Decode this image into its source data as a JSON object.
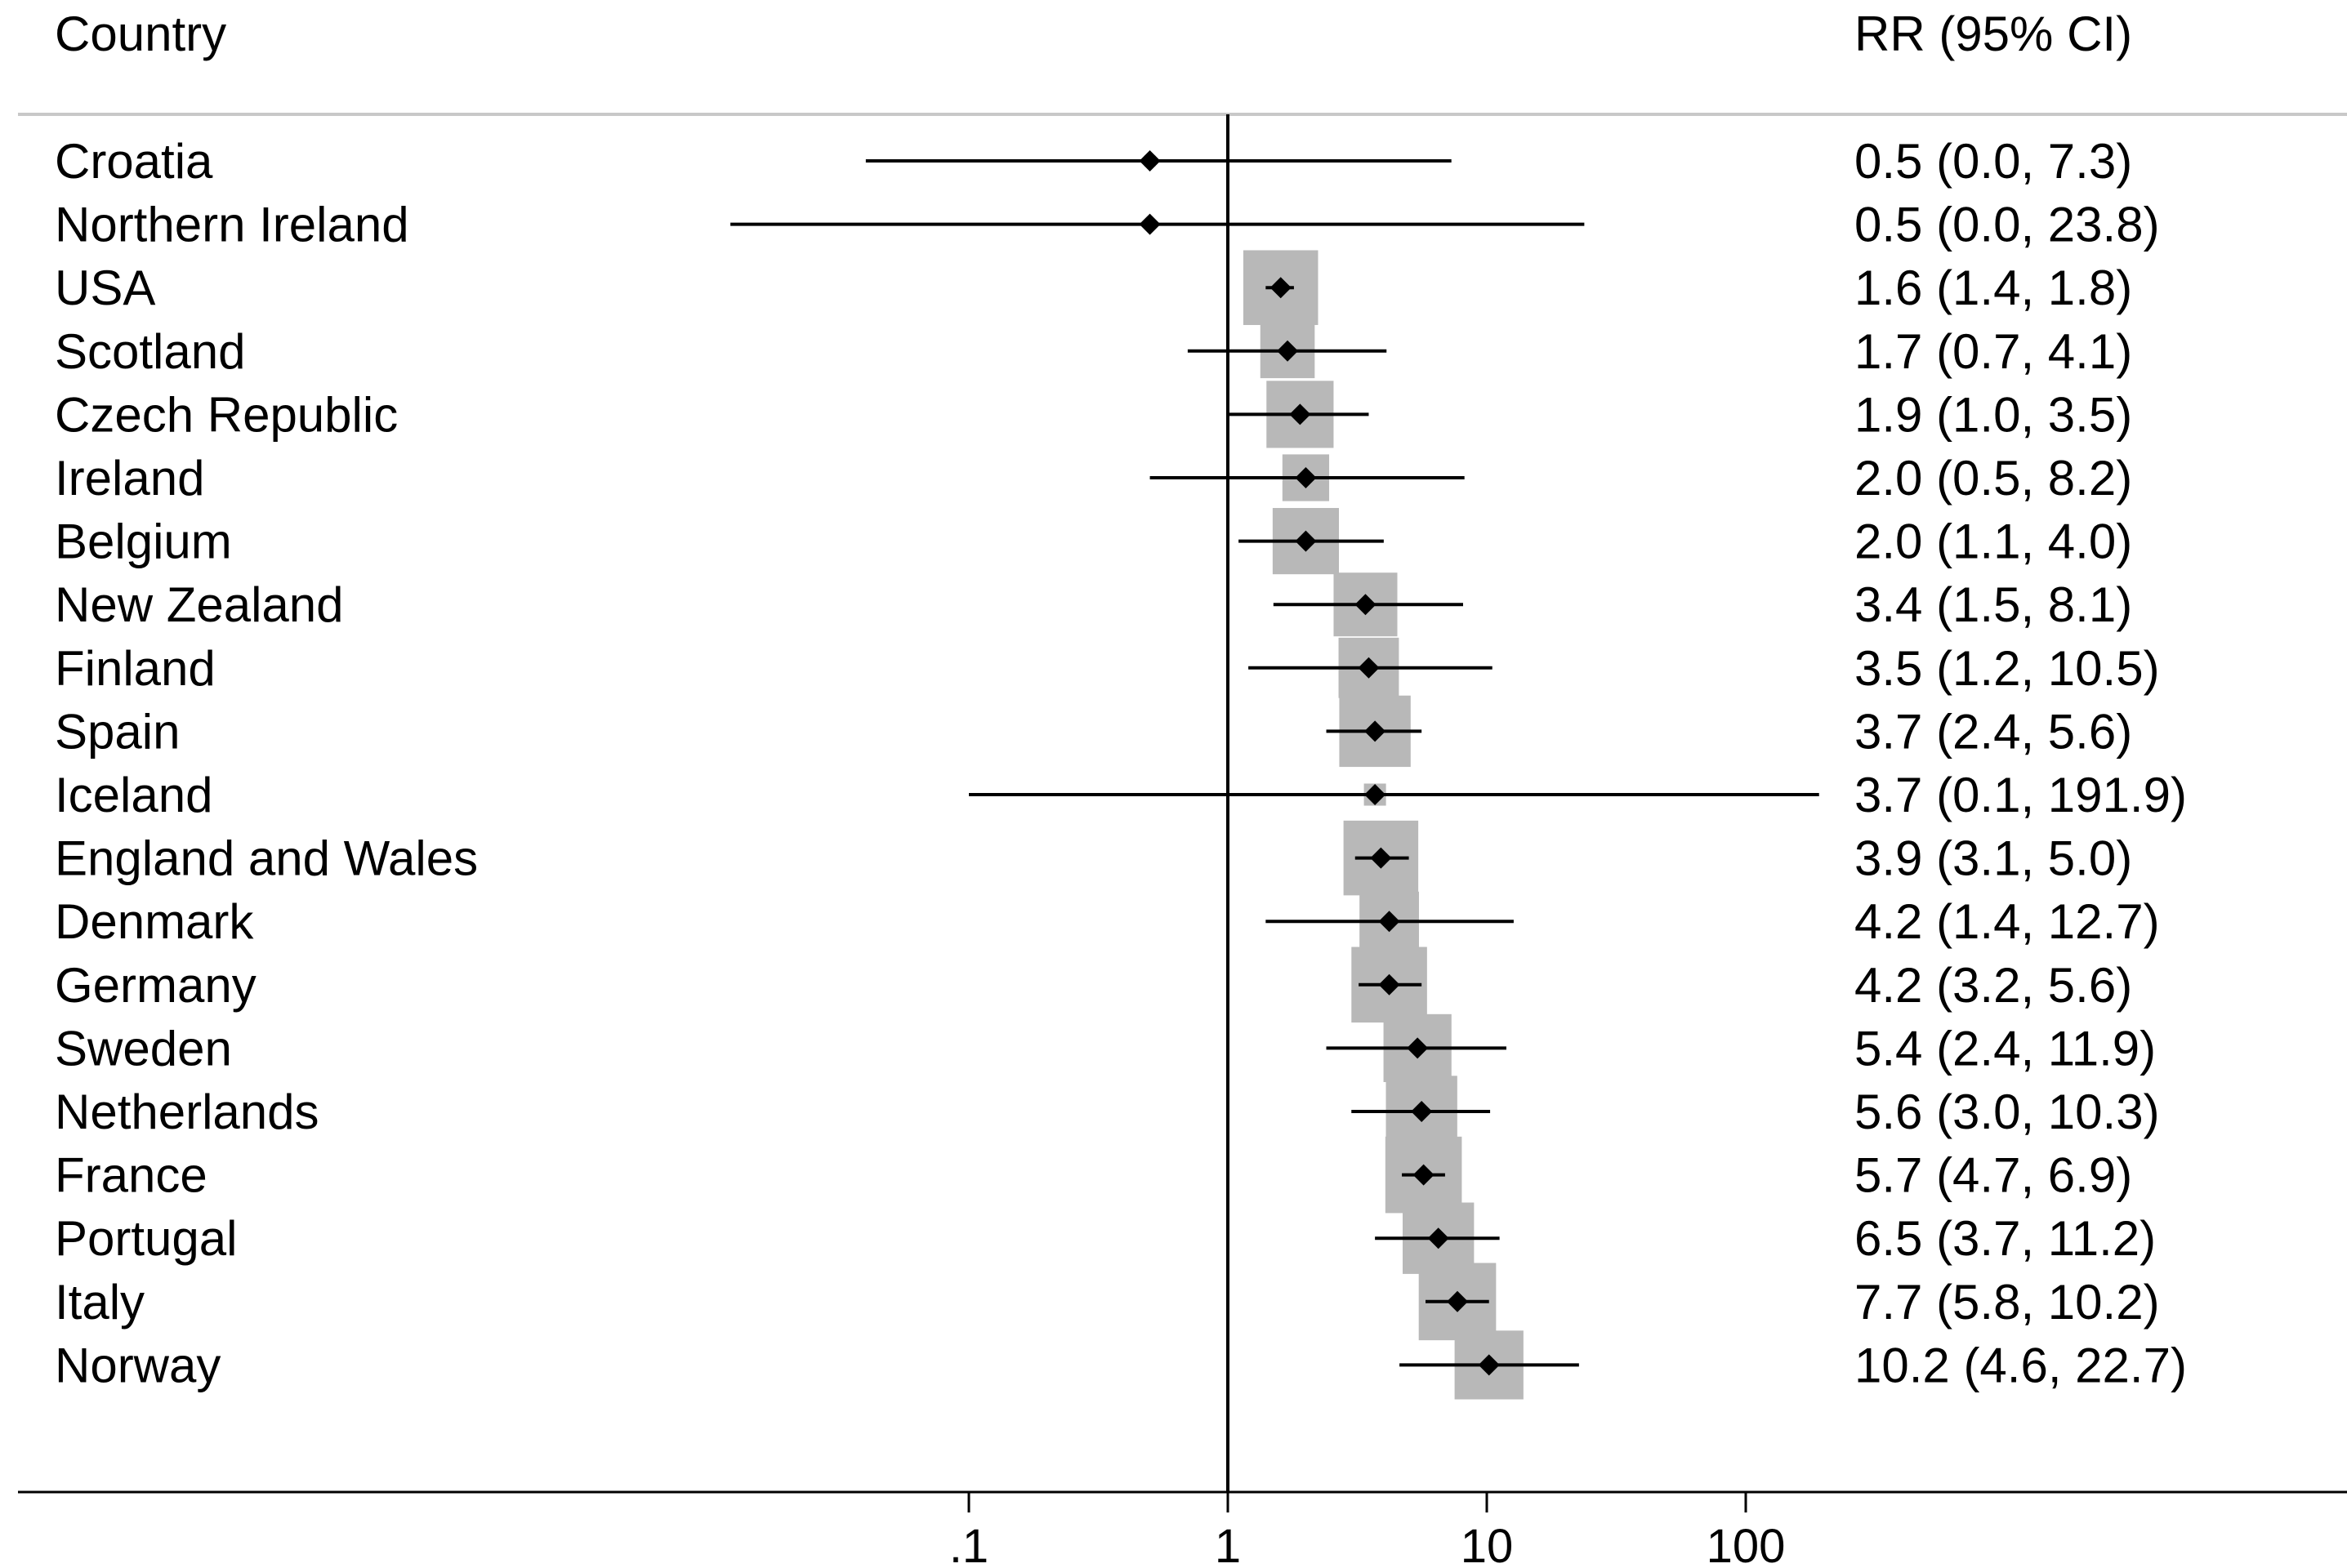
{
  "header": {
    "country": "Country",
    "estimate": "RR (95% CI)"
  },
  "chart_data": {
    "type": "forest",
    "scale": "log",
    "reference_line": 1,
    "xlim": [
      0.0204,
      1000
    ],
    "xticks": [
      {
        "value": 0.1,
        "label": ".1"
      },
      {
        "value": 1,
        "label": "1"
      },
      {
        "value": 10,
        "label": "10"
      },
      {
        "value": 100,
        "label": "100"
      }
    ],
    "columns": [
      "Country",
      "RR (95% CI)"
    ],
    "rows": [
      {
        "country": "Croatia",
        "rr": 0.5,
        "lo": 0.04,
        "hi": 7.3,
        "weight": 0.13,
        "text": "0.5 (0.0, 7.3)"
      },
      {
        "country": "Northern Ireland",
        "rr": 0.5,
        "lo": 0.012,
        "hi": 23.8,
        "weight": 0.09,
        "text": "0.5 (0.0, 23.8)"
      },
      {
        "country": "USA",
        "rr": 1.6,
        "lo": 1.4,
        "hi": 1.8,
        "weight": 0.88,
        "text": "1.6 (1.4, 1.8)"
      },
      {
        "country": "Scotland",
        "rr": 1.7,
        "lo": 0.7,
        "hi": 4.1,
        "weight": 0.64,
        "text": "1.7 (0.7, 4.1)"
      },
      {
        "country": "Czech Republic",
        "rr": 1.9,
        "lo": 1.0,
        "hi": 3.5,
        "weight": 0.79,
        "text": "1.9 (1.0, 3.5)"
      },
      {
        "country": "Ireland",
        "rr": 2.0,
        "lo": 0.5,
        "hi": 8.2,
        "weight": 0.55,
        "text": "2.0 (0.5, 8.2)"
      },
      {
        "country": "Belgium",
        "rr": 2.0,
        "lo": 1.1,
        "hi": 4.0,
        "weight": 0.78,
        "text": "2.0 (1.1, 4.0)"
      },
      {
        "country": "New Zealand",
        "rr": 3.4,
        "lo": 1.5,
        "hi": 8.1,
        "weight": 0.75,
        "text": "3.4 (1.5, 8.1)"
      },
      {
        "country": "Finland",
        "rr": 3.5,
        "lo": 1.2,
        "hi": 10.5,
        "weight": 0.71,
        "text": "3.5 (1.2, 10.5)"
      },
      {
        "country": "Spain",
        "rr": 3.7,
        "lo": 2.4,
        "hi": 5.6,
        "weight": 0.84,
        "text": "3.7 (2.4, 5.6)"
      },
      {
        "country": "Iceland",
        "rr": 3.7,
        "lo": 0.1,
        "hi": 191.9,
        "weight": 0.26,
        "text": "3.7 (0.1, 191.9)"
      },
      {
        "country": "England and Wales",
        "rr": 3.9,
        "lo": 3.1,
        "hi": 5.0,
        "weight": 0.88,
        "text": "3.9 (3.1, 5.0)"
      },
      {
        "country": "Denmark",
        "rr": 4.2,
        "lo": 1.4,
        "hi": 12.7,
        "weight": 0.7,
        "text": "4.2 (1.4, 12.7)"
      },
      {
        "country": "Germany",
        "rr": 4.2,
        "lo": 3.2,
        "hi": 5.6,
        "weight": 0.89,
        "text": "4.2 (3.2, 5.6)"
      },
      {
        "country": "Sweden",
        "rr": 5.4,
        "lo": 2.4,
        "hi": 11.9,
        "weight": 0.8,
        "text": "5.4 (2.4, 11.9)"
      },
      {
        "country": "Netherlands",
        "rr": 5.6,
        "lo": 3.0,
        "hi": 10.3,
        "weight": 0.84,
        "text": "5.6 (3.0, 10.3)"
      },
      {
        "country": "France",
        "rr": 5.7,
        "lo": 4.7,
        "hi": 6.9,
        "weight": 0.9,
        "text": "5.7 (4.7, 6.9)"
      },
      {
        "country": "Portugal",
        "rr": 6.5,
        "lo": 3.7,
        "hi": 11.2,
        "weight": 0.84,
        "text": "6.5 (3.7, 11.2)"
      },
      {
        "country": "Italy",
        "rr": 7.7,
        "lo": 5.8,
        "hi": 10.2,
        "weight": 0.91,
        "text": "7.7 (5.8, 10.2)"
      },
      {
        "country": "Norway",
        "rr": 10.2,
        "lo": 4.6,
        "hi": 22.7,
        "weight": 0.81,
        "text": "10.2 (4.6, 22.7)"
      }
    ]
  }
}
